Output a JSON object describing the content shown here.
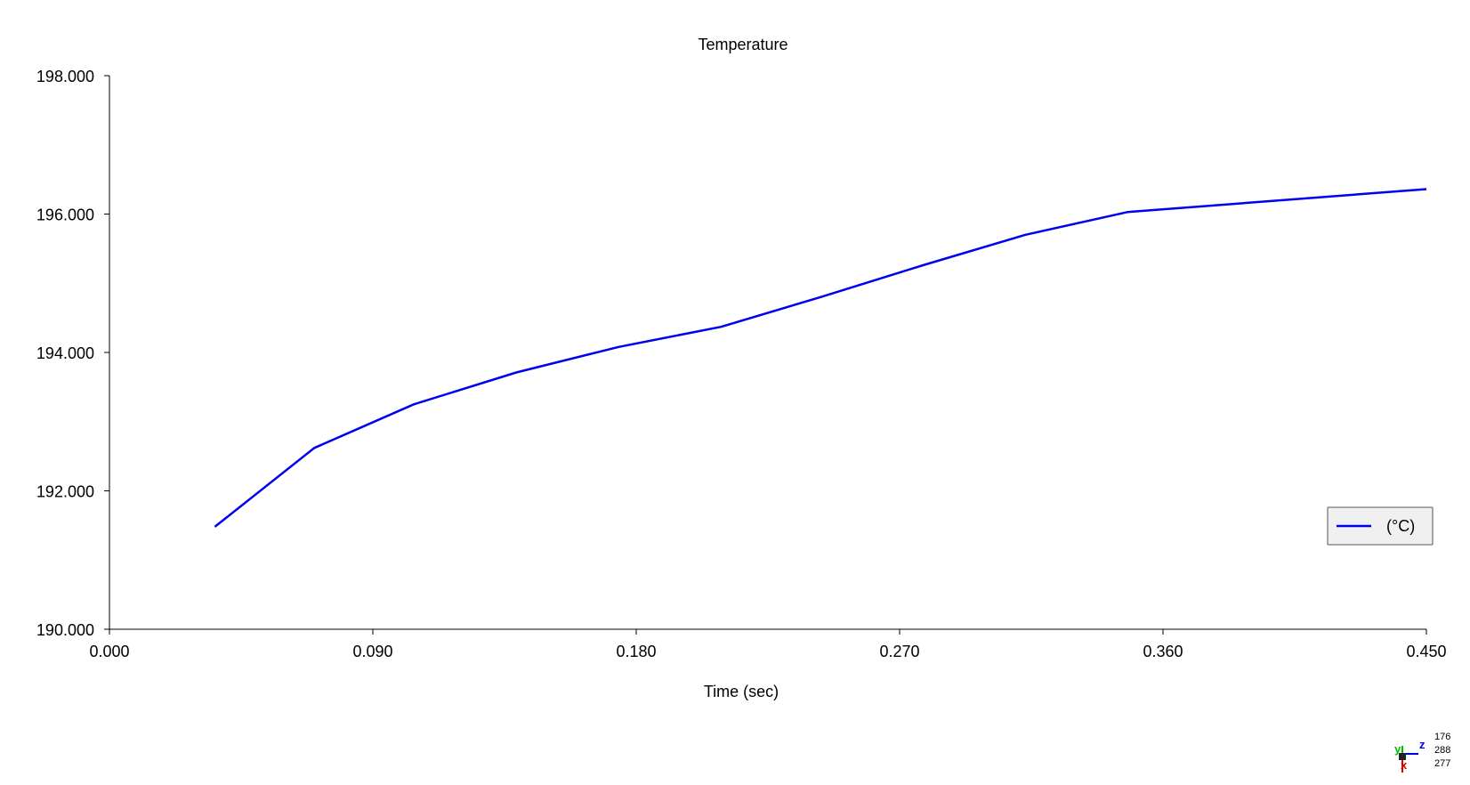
{
  "chart_data": {
    "type": "line",
    "title": "Temperature",
    "xlabel": "Time (sec)",
    "ylabel": "",
    "xlim": [
      0.0,
      0.45
    ],
    "ylim": [
      190.0,
      198.0
    ],
    "x_ticks": [
      "0.000",
      "0.090",
      "0.180",
      "0.270",
      "0.360",
      "0.450"
    ],
    "y_ticks": [
      "190.000",
      "192.000",
      "194.000",
      "196.000",
      "198.000"
    ],
    "grid": false,
    "legend_position": "right",
    "series": [
      {
        "name": "(°C)",
        "color": "#0000ee",
        "x": [
          0.036,
          0.07,
          0.104,
          0.139,
          0.174,
          0.209,
          0.243,
          0.278,
          0.313,
          0.348,
          0.45
        ],
        "y": [
          191.48,
          192.62,
          193.25,
          193.71,
          194.08,
          194.37,
          194.8,
          195.26,
          195.7,
          196.03,
          196.36
        ]
      }
    ]
  },
  "orientation_triad": {
    "axis_labels": [
      "y",
      "z",
      "x"
    ],
    "readout": [
      "176",
      "288",
      "277"
    ],
    "colors": {
      "x": "#dd0000",
      "y": "#00bb00",
      "z": "#0000dd"
    }
  }
}
